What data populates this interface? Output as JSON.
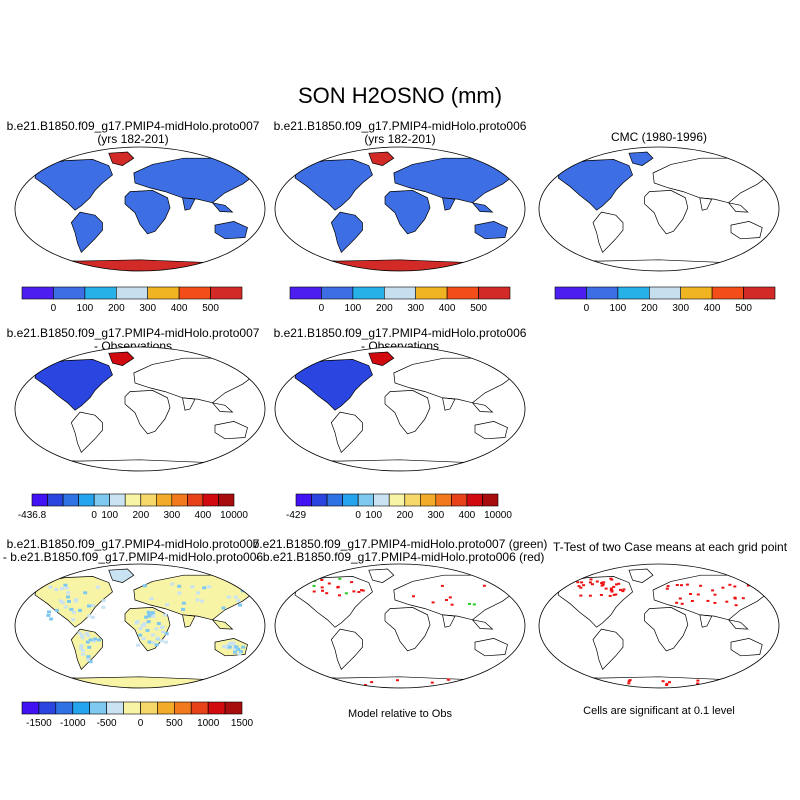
{
  "title": "SON H2OSNO (mm)",
  "colors": {
    "land": "#ffffff",
    "coast": "#000000",
    "abs_scale": [
      "#4c1ff0",
      "#3d6ee3",
      "#26b1e8",
      "#c6dfef",
      "#f0b423",
      "#f34e19",
      "#d12a27"
    ],
    "diff_scale": [
      "#4212f2",
      "#2b46e0",
      "#2f72e3",
      "#25a4ee",
      "#7fc8ef",
      "#c9e3f2",
      "#f8f4a6",
      "#f6d86a",
      "#f3ab2a",
      "#f07a1d",
      "#e84219",
      "#d10a10",
      "#a80d0d"
    ],
    "sig_green": "#22cc22",
    "sig_red": "#ee1111"
  },
  "panels": [
    {
      "id": "case1",
      "title_lines": [
        "b.e21.B1850.f09_g17.PMIP4-midHolo.proto007",
        "(yrs 182-201)"
      ],
      "fill": {
        "land": "#3d6ee3",
        "nh": "#d12a27",
        "antarctica": "#d12a27"
      }
    },
    {
      "id": "case2",
      "title_lines": [
        "b.e21.B1850.f09_g17.PMIP4-midHolo.proto006",
        "(yrs 182-201)"
      ],
      "fill": {
        "land": "#3d6ee3",
        "nh": "#d12a27",
        "antarctica": "#d12a27"
      }
    },
    {
      "id": "obs",
      "title_lines": [
        "CMC (1980-1996)"
      ],
      "fill": {
        "land": "#3d6ee3",
        "nh": "#3d6ee3",
        "antarctica": null
      }
    },
    {
      "id": "diff1",
      "title_lines": [
        "b.e21.B1850.f09_g17.PMIP4-midHolo.proto007",
        "- Observations"
      ],
      "fill": {
        "land": "#2b46e0",
        "nh": "#d10a10",
        "antarctica": null
      }
    },
    {
      "id": "diff2",
      "title_lines": [
        "b.e21.B1850.f09_g17.PMIP4-midHolo.proto006",
        "- Observations"
      ],
      "fill": {
        "land": "#2b46e0",
        "nh": "#d10a10",
        "antarctica": null
      }
    },
    {
      "id": "casediff",
      "title_lines": [
        "b.e21.B1850.f09_g17.PMIP4-midHolo.proto007",
        "- b.e21.B1850.f09_g17.PMIP4-midHolo.proto006"
      ],
      "fill": {
        "land": "#f8f4a6",
        "nh": "#c9e3f2",
        "antarctica": "#f8f4a6"
      }
    },
    {
      "id": "siglegend",
      "title_lines": [
        "b.e21.B1850.f09_g17.PMIP4-midHolo.proto007 (green)",
        "- b.e21.B1850.f09_g17.PMIP4-midHolo.proto006 (red)"
      ],
      "fill": {
        "land": null,
        "nh": null,
        "antarctica": null
      }
    },
    {
      "id": "ttest",
      "title_lines": [
        "T-Test of two Case means at each grid point"
      ],
      "fill": {
        "land": null,
        "nh": null,
        "antarctica": null
      }
    }
  ],
  "colorbars": [
    {
      "id": "cb1",
      "labels": [
        "0",
        "100",
        "200",
        "300",
        "400",
        "500"
      ]
    },
    {
      "id": "cb2",
      "labels": [
        "0",
        "100",
        "200",
        "300",
        "400",
        "500"
      ]
    },
    {
      "id": "cb3",
      "labels": [
        "0",
        "100",
        "200",
        "300",
        "400",
        "500"
      ]
    },
    {
      "id": "cb4",
      "labels": [
        "-436.8",
        "0",
        "100",
        "200",
        "300",
        "400",
        "10000"
      ]
    },
    {
      "id": "cb5",
      "labels": [
        "-429",
        "0",
        "100",
        "200",
        "300",
        "400",
        "10000"
      ]
    },
    {
      "id": "cb6",
      "labels": [
        "-1500",
        "-1000",
        "-500",
        "0",
        "500",
        "1000",
        "1500"
      ]
    }
  ],
  "notes": {
    "model_relative": "Model relative to Obs",
    "significance": "Cells are significant at 0.1 level"
  },
  "chart_data": {
    "type": "heatmap",
    "title": "SON H2OSNO (mm)",
    "variable": "H2OSNO",
    "units": "mm",
    "season": "SON",
    "abs_levels": [
      0,
      100,
      200,
      300,
      400,
      500
    ],
    "diff_levels_obs1": [
      -436.8,
      0,
      100,
      200,
      300,
      400,
      10000
    ],
    "diff_levels_obs2": [
      -429,
      0,
      100,
      200,
      300,
      400,
      10000
    ],
    "diff_levels_case": [
      -1500,
      -1000,
      -500,
      0,
      500,
      1000,
      1500
    ],
    "significance_level": 0.1
  }
}
